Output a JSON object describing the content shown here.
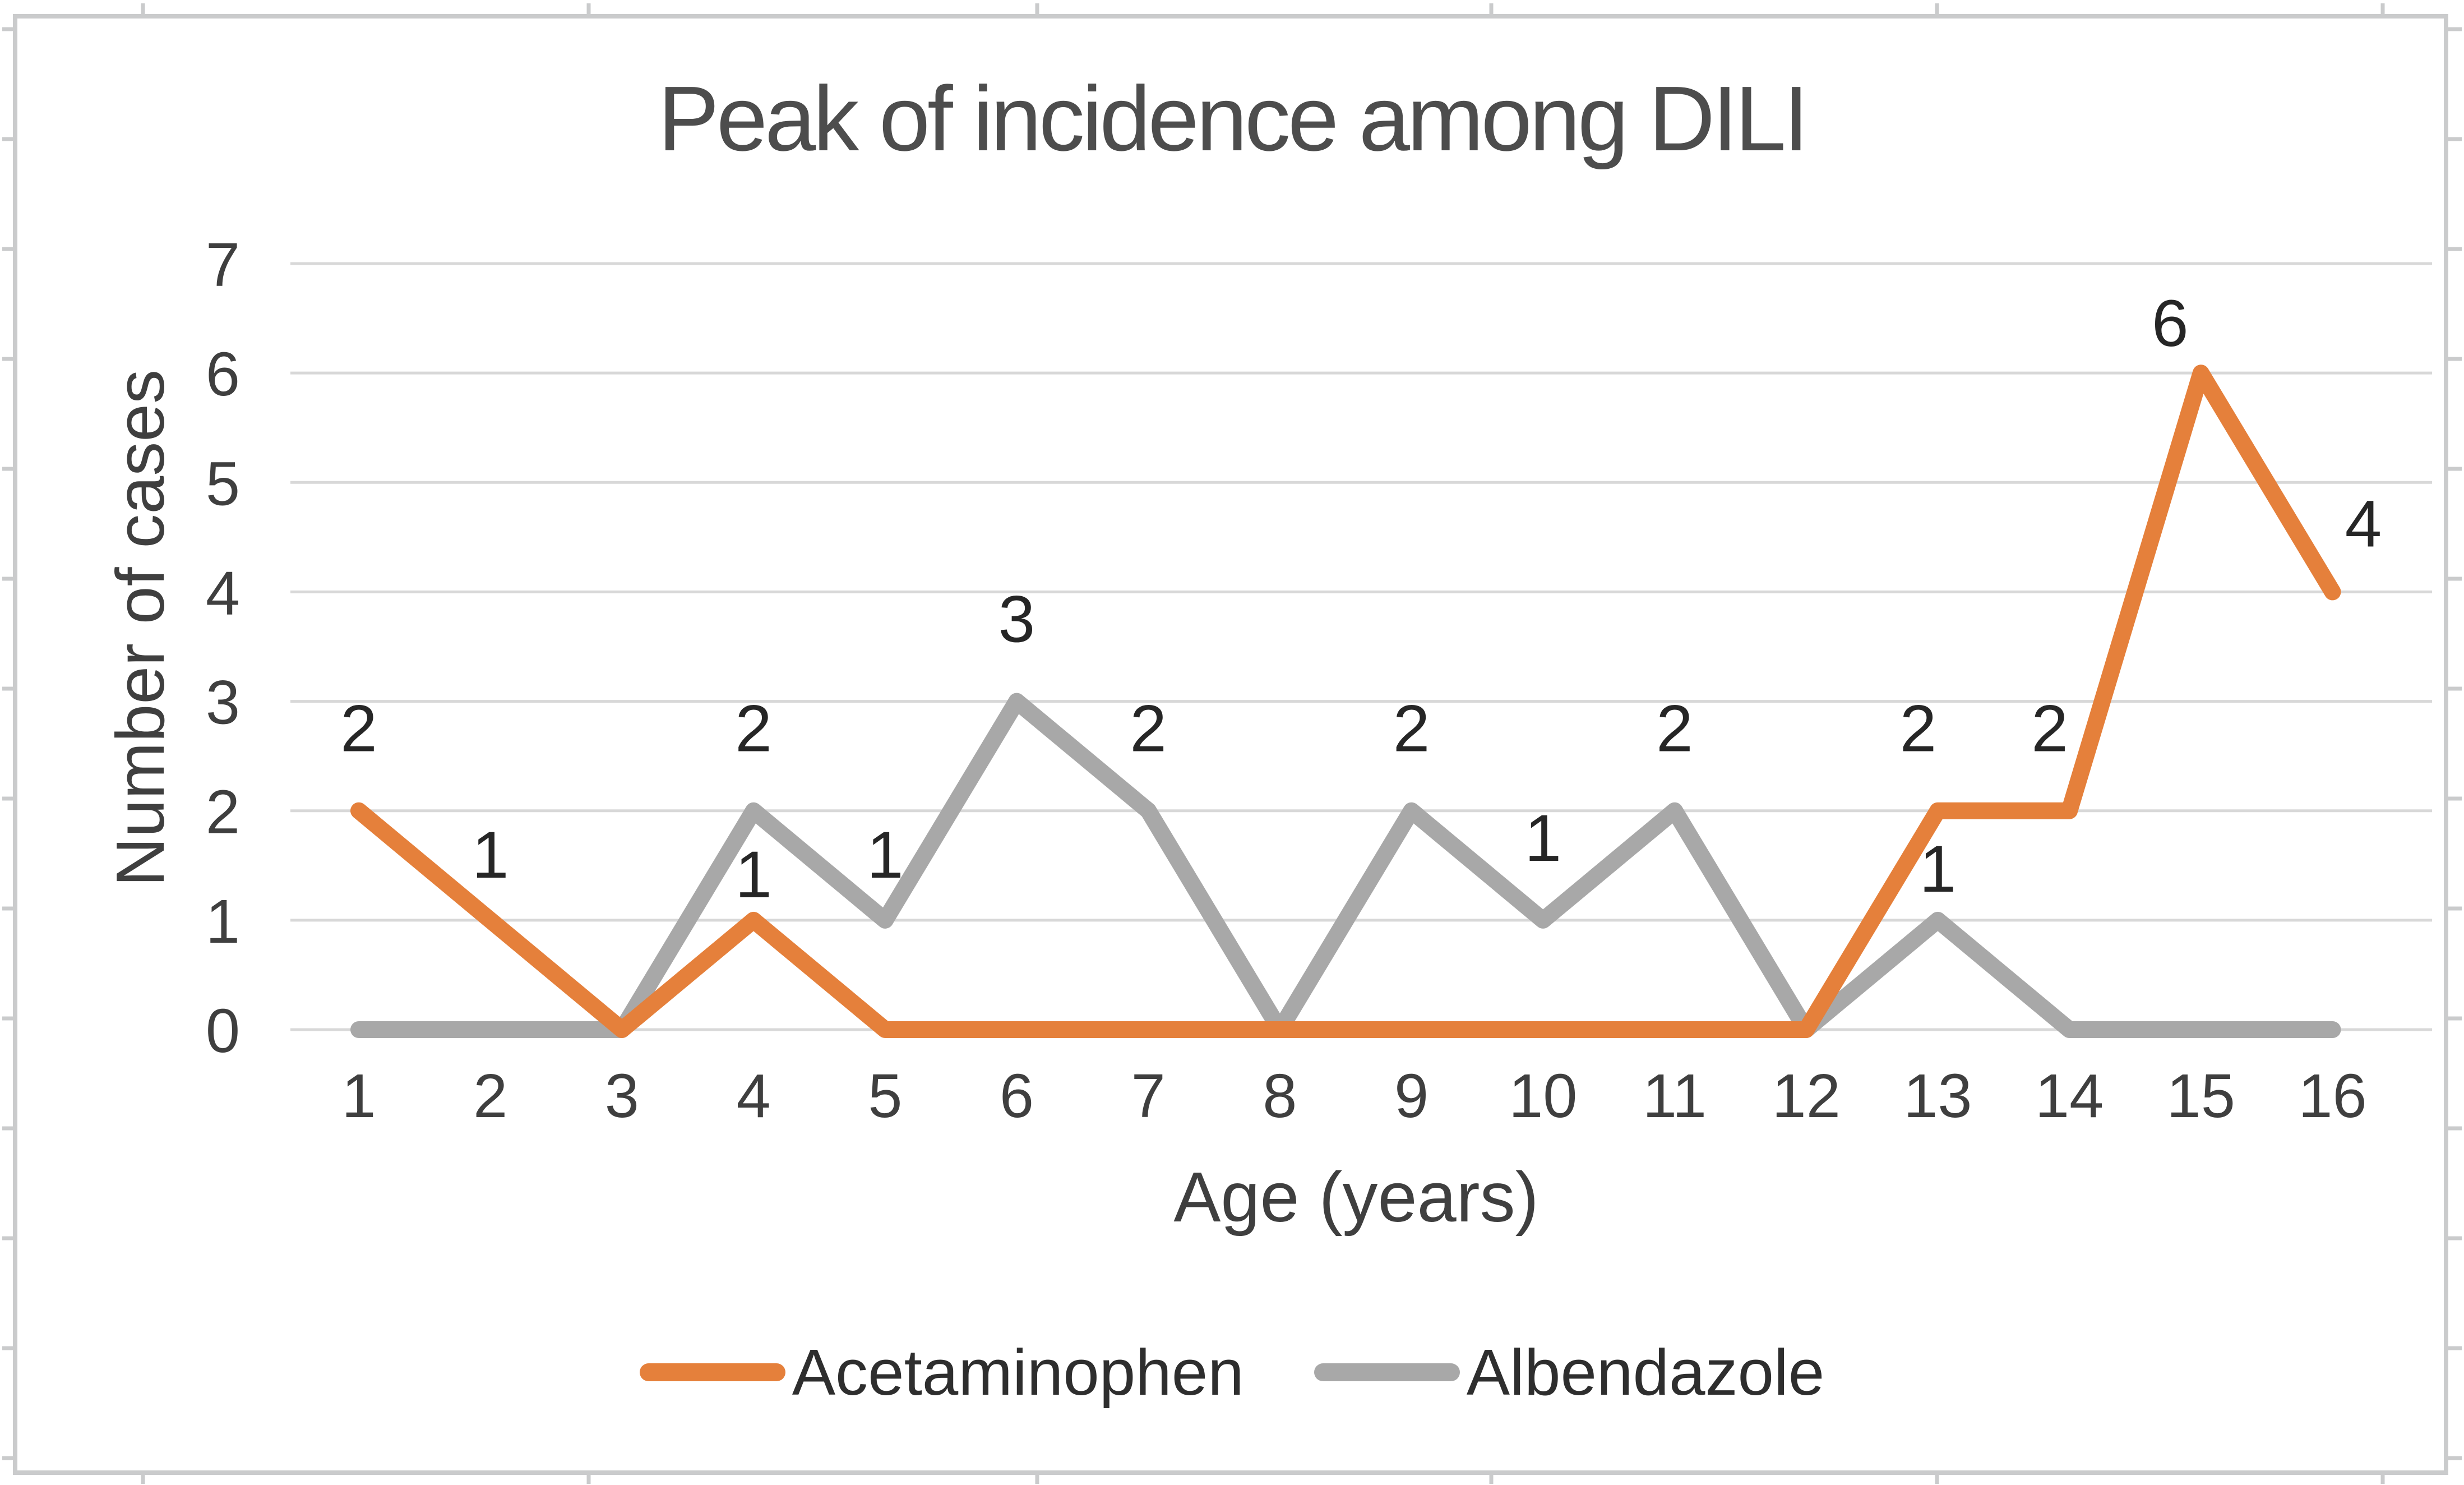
{
  "figure": {
    "title": "Peak of incidence among DILI",
    "x_axis_title": "Age (years)",
    "y_axis_title": "Number of cases"
  },
  "chart_data": {
    "type": "line",
    "title": "Peak of incidence among DILI",
    "xlabel": "Age (years)",
    "ylabel": "Number of cases",
    "x": [
      1,
      2,
      3,
      4,
      5,
      6,
      7,
      8,
      9,
      10,
      11,
      12,
      13,
      14,
      15,
      16
    ],
    "ylim": [
      0,
      7
    ],
    "yticks": [
      0,
      1,
      2,
      3,
      4,
      5,
      6,
      7
    ],
    "grid": true,
    "legend_position": "bottom",
    "series": [
      {
        "name": "Acetaminophen",
        "color": "#E5803B",
        "values": [
          2,
          1,
          0,
          1,
          0,
          0,
          0,
          0,
          0,
          0,
          0,
          0,
          2,
          2,
          6,
          4
        ],
        "point_labels": [
          "2",
          "1",
          "",
          "1",
          "",
          "",
          "",
          "",
          "",
          "",
          "",
          "",
          "2",
          "2",
          "6",
          "4"
        ]
      },
      {
        "name": "Albendazole",
        "color": "#A8A8A8",
        "values": [
          0,
          0,
          0,
          2,
          1,
          3,
          2,
          0,
          2,
          1,
          2,
          0,
          1,
          0,
          0,
          0
        ],
        "point_labels": [
          "",
          "",
          "",
          "2",
          "1",
          "3",
          "2",
          "",
          "2",
          "1",
          "2",
          "",
          "1",
          "",
          "",
          ""
        ]
      }
    ]
  },
  "legend": {
    "items": [
      {
        "label": "Acetaminophen",
        "color": "#E5803B"
      },
      {
        "label": "Albendazole",
        "color": "#A8A8A8"
      }
    ]
  },
  "colors": {
    "accent_orange": "#E5803B",
    "accent_gray": "#A8A8A8",
    "gridline": "#D8D8D8",
    "frame_border": "#CACBCC",
    "title_text": "#4D4D4D",
    "axis_text": "#3F3F3F",
    "data_label_text": "#262626"
  }
}
